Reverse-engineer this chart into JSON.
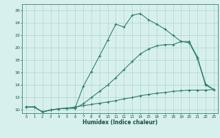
{
  "xlabel": "Humidex (Indice chaleur)",
  "line_color": "#2e7d6e",
  "bg_color": "#d7f0ee",
  "grid_color": "#aed4cf",
  "xlim": [
    -0.5,
    23.5
  ],
  "ylim": [
    9.5,
    27
  ],
  "xticks": [
    0,
    1,
    2,
    3,
    4,
    5,
    6,
    7,
    8,
    9,
    10,
    11,
    12,
    13,
    14,
    15,
    16,
    17,
    18,
    19,
    20,
    21,
    22,
    23
  ],
  "yticks": [
    10,
    12,
    14,
    16,
    18,
    20,
    22,
    24,
    26
  ],
  "line1_x": [
    0,
    1,
    2,
    3,
    4,
    5,
    6,
    7,
    8,
    9,
    10,
    11,
    12,
    13,
    14,
    15,
    16,
    17,
    18,
    19,
    20,
    21,
    22,
    23
  ],
  "line1_y": [
    10.5,
    10.5,
    9.7,
    10.0,
    10.2,
    10.3,
    10.3,
    13.8,
    16.2,
    18.7,
    21.2,
    23.8,
    23.3,
    25.2,
    25.5,
    24.5,
    23.8,
    23.0,
    22.0,
    21.0,
    20.8,
    18.3,
    14.0,
    13.3
  ],
  "line2_x": [
    0,
    1,
    2,
    3,
    4,
    5,
    6,
    7,
    8,
    9,
    10,
    11,
    12,
    13,
    14,
    15,
    16,
    17,
    18,
    19,
    20,
    21,
    22,
    23
  ],
  "line2_y": [
    10.5,
    10.5,
    9.7,
    10.0,
    10.2,
    10.3,
    10.3,
    11.0,
    12.0,
    13.0,
    14.0,
    15.2,
    16.5,
    17.8,
    19.0,
    19.8,
    20.3,
    20.5,
    20.5,
    21.0,
    21.0,
    18.5,
    14.2,
    13.3
  ],
  "line3_x": [
    0,
    1,
    2,
    3,
    4,
    5,
    6,
    7,
    8,
    9,
    10,
    11,
    12,
    13,
    14,
    15,
    16,
    17,
    18,
    19,
    20,
    21,
    22,
    23
  ],
  "line3_y": [
    10.5,
    10.5,
    9.7,
    10.0,
    10.2,
    10.3,
    10.5,
    10.7,
    10.9,
    11.1,
    11.3,
    11.5,
    11.8,
    12.0,
    12.3,
    12.5,
    12.7,
    12.8,
    13.0,
    13.1,
    13.2,
    13.2,
    13.2,
    13.3
  ]
}
